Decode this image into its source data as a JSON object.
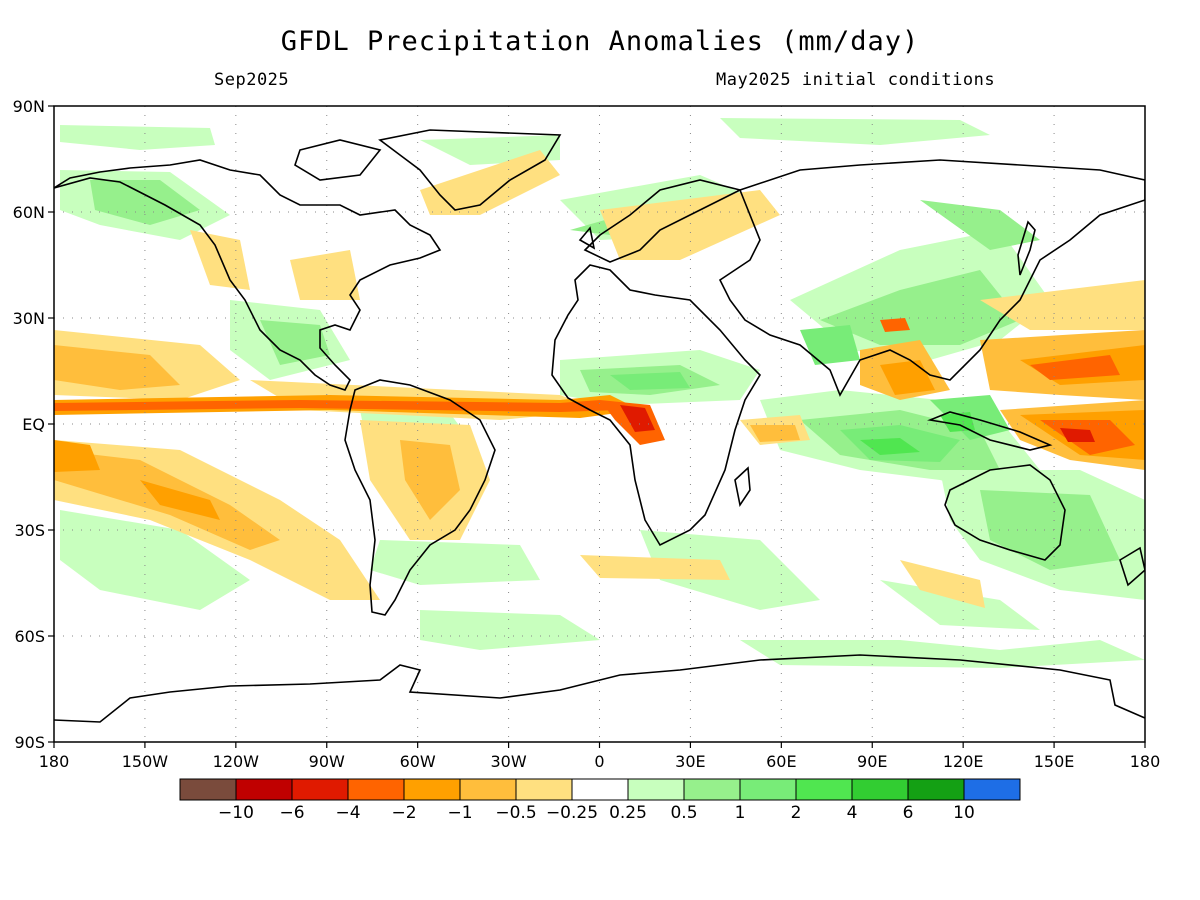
{
  "title": "GFDL Precipitation Anomalies (mm/day)",
  "valid_month": "Sep2025",
  "initial_conditions": "May2025 initial conditions",
  "lat_ticks": [
    "90N",
    "60N",
    "30N",
    "EQ",
    "30S",
    "60S",
    "90S"
  ],
  "lon_ticks": [
    "180",
    "150W",
    "120W",
    "90W",
    "60W",
    "30W",
    "0",
    "30E",
    "60E",
    "90E",
    "120E",
    "150E",
    "180"
  ],
  "colorbar": {
    "colors": [
      "#7a4b3c",
      "#c00000",
      "#e01a00",
      "#ff6400",
      "#ffa000",
      "#ffbe3c",
      "#ffe080",
      "#ffffff",
      "#c8ffbe",
      "#96f08c",
      "#78ec78",
      "#50e650",
      "#32cd32",
      "#14a014",
      "#1e6ee6"
    ],
    "labels": [
      "-10",
      "-6",
      "-4",
      "-2",
      "-1",
      "-0.5",
      "-0.25",
      "0.25",
      "0.5",
      "1",
      "2",
      "4",
      "6",
      "10"
    ]
  },
  "map_extent": {
    "lon": [
      -180,
      180
    ],
    "lat": [
      -90,
      90
    ]
  }
}
